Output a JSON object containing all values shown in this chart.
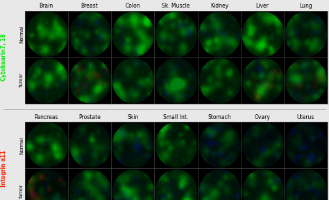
{
  "top_col_labels": [
    "Brain",
    "Breast",
    "Colon",
    "Sk. Muscle",
    "Kidney",
    "Liver",
    "Lung"
  ],
  "bottom_col_labels": [
    "Pancreas",
    "Prostate",
    "Skin",
    "Small Int.",
    "Stomach",
    "Ovary",
    "Uterus"
  ],
  "row_labels_top": [
    "Normal",
    "Tumor"
  ],
  "row_labels_bottom": [
    "Normal",
    "Tumor"
  ],
  "left_label_top": "Cytokearin7, 18",
  "left_label_bottom": "Integrin α11",
  "left_label_top_color": "#00ee00",
  "left_label_bottom_color": "#ff2200",
  "bg_color": "#e8e8e8",
  "sep_color": "#aaaaaa",
  "col_label_fontsize": 5.5,
  "row_label_fontsize": 5,
  "side_label_fontsize": 5.5,
  "panel_border_color": "#555555",
  "top_panels": {
    "normal": {
      "green_level": [
        0.8,
        0.5,
        0.75,
        0.6,
        0.65,
        0.85,
        0.55
      ],
      "blue_level": [
        0.1,
        0.4,
        0.25,
        0.3,
        0.35,
        0.1,
        0.3
      ],
      "red_level": [
        0.0,
        0.0,
        0.0,
        0.0,
        0.0,
        0.0,
        0.0
      ],
      "texture": [
        1,
        2,
        3,
        4,
        5,
        1,
        6
      ]
    },
    "tumor": {
      "green_level": [
        0.7,
        0.6,
        0.65,
        0.5,
        0.6,
        0.55,
        0.5
      ],
      "blue_level": [
        0.3,
        0.3,
        0.3,
        0.45,
        0.2,
        0.3,
        0.4
      ],
      "red_level": [
        0.0,
        0.35,
        0.0,
        0.0,
        0.0,
        0.3,
        0.25
      ],
      "texture": [
        1,
        7,
        3,
        8,
        5,
        9,
        10
      ]
    }
  },
  "bottom_panels": {
    "normal": {
      "green_level": [
        0.7,
        0.45,
        0.4,
        0.6,
        0.3,
        0.3,
        0.2
      ],
      "blue_level": [
        0.15,
        0.35,
        0.45,
        0.2,
        0.55,
        0.5,
        0.6
      ],
      "red_level": [
        0.0,
        0.0,
        0.0,
        0.0,
        0.0,
        0.0,
        0.0
      ],
      "texture": [
        11,
        12,
        13,
        3,
        14,
        15,
        16
      ]
    },
    "tumor": {
      "green_level": [
        0.3,
        0.5,
        0.55,
        0.65,
        0.5,
        0.55,
        0.3
      ],
      "blue_level": [
        0.3,
        0.4,
        0.4,
        0.35,
        0.45,
        0.35,
        0.55
      ],
      "red_level": [
        0.55,
        0.0,
        0.0,
        0.0,
        0.0,
        0.0,
        0.0
      ],
      "texture": [
        17,
        12,
        13,
        18,
        19,
        20,
        16
      ]
    }
  }
}
